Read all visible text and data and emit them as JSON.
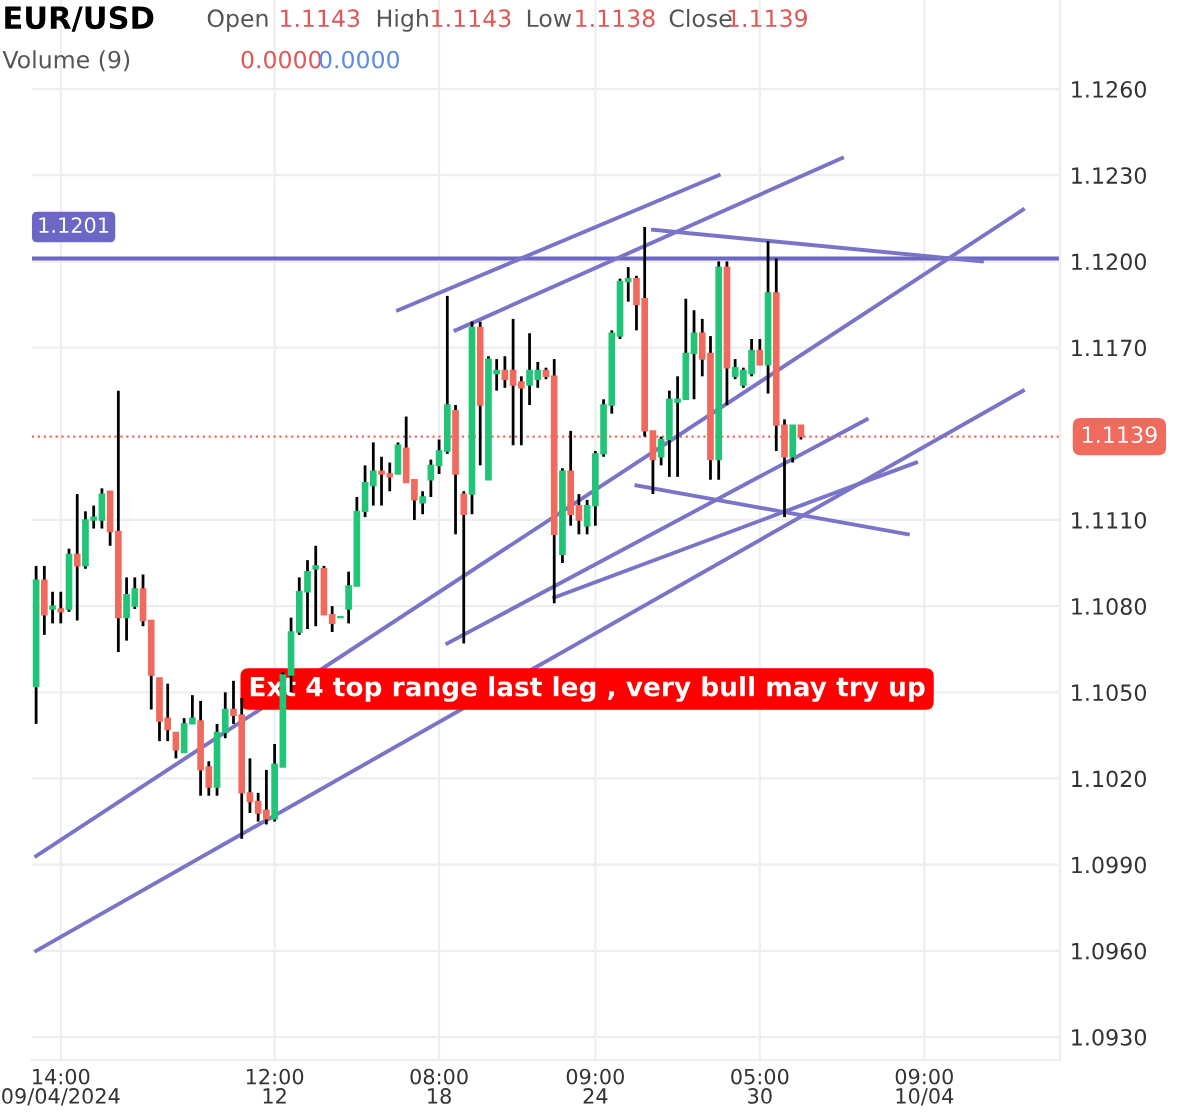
{
  "chart_data": {
    "type": "candlestick",
    "title": "EUR/USD",
    "annotations": [
      "Open",
      "1.1143",
      "High",
      "1.1143",
      "Low",
      "1.1138",
      "Close",
      "1.1139",
      "Volume (9)",
      "0.0000",
      "0.0000",
      "Ext 4 top range last leg , very bull may try up"
    ],
    "categories": [
      null,
      null,
      null,
      "14:00\n09/04/2024",
      null,
      null,
      null,
      null,
      null,
      null,
      null,
      null,
      null,
      null,
      null,
      null,
      null,
      null,
      null,
      null,
      null,
      null,
      null,
      null,
      null,
      null,
      null,
      null,
      null,
      "12:00\n12",
      null,
      null,
      null,
      null,
      null,
      null,
      null,
      null,
      null,
      null,
      null,
      null,
      null,
      null,
      null,
      null,
      null,
      null,
      null,
      "08:00\n18",
      null,
      null,
      null,
      null,
      null,
      null,
      null,
      null,
      null,
      null,
      null,
      null,
      null,
      null,
      null,
      null,
      null,
      null,
      "09:00\n24",
      null,
      null,
      null,
      null,
      null,
      null,
      null,
      null,
      null,
      null,
      null,
      null,
      null,
      null,
      null,
      null,
      null,
      null,
      null,
      "05:00\n30",
      null,
      null,
      null,
      null,
      null,
      null,
      null,
      null,
      null,
      null,
      null,
      null,
      null,
      null,
      null,
      null,
      null,
      null,
      null,
      "09:00\n10/04",
      null,
      null,
      null,
      null,
      null,
      null,
      null,
      null,
      null,
      null,
      null,
      null,
      null,
      null,
      null,
      null
    ],
    "ohlc": [
      [
        1.1052,
        1.1094,
        1.1039,
        1.1089
      ],
      [
        1.1089,
        1.1094,
        1.107,
        1.1077
      ],
      [
        1.1079,
        1.1085,
        1.1074,
        1.108
      ],
      [
        1.1079,
        1.1085,
        1.1074,
        1.1078
      ],
      [
        1.1079,
        1.11,
        1.1078,
        1.1098
      ],
      [
        1.1098,
        1.1119,
        1.1075,
        1.1094
      ],
      [
        1.1094,
        1.1113,
        1.1093,
        1.111
      ],
      [
        1.111,
        1.1115,
        1.1107,
        1.1111
      ],
      [
        1.111,
        1.1121,
        1.1107,
        1.1119
      ],
      [
        1.112,
        1.112,
        1.1101,
        1.1106
      ],
      [
        1.1106,
        1.1155,
        1.1064,
        1.1076
      ],
      [
        1.1076,
        1.109,
        1.1068,
        1.1084
      ],
      [
        1.108,
        1.109,
        1.1079,
        1.1086
      ],
      [
        1.1086,
        1.1091,
        1.1073,
        1.1075
      ],
      [
        1.1075,
        1.1075,
        1.1044,
        1.1056
      ],
      [
        1.1055,
        1.1055,
        1.1033,
        1.104
      ],
      [
        1.1041,
        1.1053,
        1.1033,
        1.1037
      ],
      [
        1.1036,
        1.1036,
        1.1027,
        1.103
      ],
      [
        1.1029,
        1.1041,
        1.1029,
        1.1039
      ],
      [
        1.1039,
        1.1049,
        1.1039,
        1.1041
      ],
      [
        1.104,
        1.1047,
        1.1014,
        1.1023
      ],
      [
        1.1024,
        1.1026,
        1.1014,
        1.1017
      ],
      [
        1.1017,
        1.1039,
        1.1014,
        1.1036
      ],
      [
        1.1036,
        1.105,
        1.1034,
        1.1044
      ],
      [
        1.1044,
        1.1054,
        1.1039,
        1.1042
      ],
      [
        1.1042,
        1.1048,
        1.0999,
        1.1015
      ],
      [
        1.1015,
        1.1027,
        1.1008,
        1.1012
      ],
      [
        1.1012,
        1.1015,
        1.1005,
        1.1008
      ],
      [
        1.1009,
        1.1023,
        1.1004,
        1.1006
      ],
      [
        1.1006,
        1.1032,
        1.1005,
        1.1025
      ],
      [
        1.1024,
        1.1057,
        1.1024,
        1.1056
      ],
      [
        1.1056,
        1.1076,
        1.105,
        1.1071
      ],
      [
        1.1071,
        1.109,
        1.107,
        1.1085
      ],
      [
        1.1085,
        1.1096,
        1.1072,
        1.1092
      ],
      [
        1.1093,
        1.1101,
        1.1073,
        1.1094
      ],
      [
        1.1093,
        1.1094,
        1.1077,
        1.1077
      ],
      [
        1.1077,
        1.108,
        1.1071,
        1.1074
      ],
      [
        1.1076,
        1.1076,
        1.1076,
        1.1076
      ],
      [
        1.1079,
        1.1092,
        1.1074,
        1.1087
      ],
      [
        1.1087,
        1.1118,
        1.1087,
        1.1113
      ],
      [
        1.1113,
        1.1129,
        1.1111,
        1.1123
      ],
      [
        1.1122,
        1.1137,
        1.1115,
        1.1127
      ],
      [
        1.1127,
        1.1132,
        1.1115,
        1.1126
      ],
      [
        1.1126,
        1.113,
        1.112,
        1.1125
      ],
      [
        1.1126,
        1.1137,
        1.1126,
        1.1136
      ],
      [
        1.1135,
        1.1146,
        1.1123,
        1.1123
      ],
      [
        1.1124,
        1.1124,
        1.111,
        1.1117
      ],
      [
        1.1116,
        1.112,
        1.1112,
        1.1118
      ],
      [
        1.1124,
        1.1131,
        1.1118,
        1.1129
      ],
      [
        1.1129,
        1.1138,
        1.1126,
        1.1134
      ],
      [
        1.1134,
        1.1188,
        1.1133,
        1.115
      ],
      [
        1.1148,
        1.115,
        1.1105,
        1.1126
      ],
      [
        1.1119,
        1.112,
        1.1067,
        1.1112
      ],
      [
        1.1119,
        1.1179,
        1.1112,
        1.1177
      ],
      [
        1.1177,
        1.1179,
        1.1129,
        1.115
      ],
      [
        1.1124,
        1.1167,
        1.1124,
        1.1166
      ],
      [
        1.1161,
        1.1166,
        1.1155,
        1.1162
      ],
      [
        1.1162,
        1.1167,
        1.1156,
        1.1159
      ],
      [
        1.1162,
        1.118,
        1.1136,
        1.1157
      ],
      [
        1.1158,
        1.116,
        1.1136,
        1.1156
      ],
      [
        1.1157,
        1.1175,
        1.115,
        1.1162
      ],
      [
        1.1159,
        1.1165,
        1.1156,
        1.1162
      ],
      [
        1.1162,
        1.1163,
        1.1159,
        1.116
      ],
      [
        1.116,
        1.1166,
        1.1081,
        1.1105
      ],
      [
        1.1098,
        1.1128,
        1.1095,
        1.1127
      ],
      [
        1.1127,
        1.1141,
        1.1108,
        1.1112
      ],
      [
        1.1115,
        1.1119,
        1.1105,
        1.111
      ],
      [
        1.1108,
        1.1117,
        1.1105,
        1.1115
      ],
      [
        1.1115,
        1.1134,
        1.1108,
        1.1133
      ],
      [
        1.1133,
        1.1152,
        1.1132,
        1.115
      ],
      [
        1.115,
        1.1176,
        1.1147,
        1.1175
      ],
      [
        1.1174,
        1.1194,
        1.1173,
        1.1193
      ],
      [
        1.1193,
        1.1198,
        1.1186,
        1.1194
      ],
      [
        1.1194,
        1.1195,
        1.1176,
        1.1185
      ],
      [
        1.1187,
        1.1212,
        1.1139,
        1.1141
      ],
      [
        1.1141,
        1.1141,
        1.1119,
        1.1131
      ],
      [
        1.1132,
        1.1139,
        1.1129,
        1.1138
      ],
      [
        1.1138,
        1.1155,
        1.1125,
        1.1152
      ],
      [
        1.1151,
        1.116,
        1.1125,
        1.1152
      ],
      [
        1.1152,
        1.1187,
        1.1152,
        1.1168
      ],
      [
        1.1168,
        1.1183,
        1.1152,
        1.1175
      ],
      [
        1.1175,
        1.118,
        1.116,
        1.1166
      ],
      [
        1.1168,
        1.1174,
        1.1124,
        1.1131
      ],
      [
        1.1131,
        1.12,
        1.1124,
        1.1198
      ],
      [
        1.1198,
        1.12,
        1.115,
        1.1163
      ],
      [
        1.116,
        1.1166,
        1.1159,
        1.1163
      ],
      [
        1.1157,
        1.1163,
        1.1156,
        1.1162
      ],
      [
        1.1161,
        1.1173,
        1.116,
        1.1169
      ],
      [
        1.1169,
        1.1173,
        1.1164,
        1.1164
      ],
      [
        1.1164,
        1.1207,
        1.1154,
        1.1189
      ],
      [
        1.1189,
        1.1201,
        1.1134,
        1.1143
      ],
      [
        1.1143,
        1.1145,
        1.1111,
        1.1132
      ],
      [
        1.1132,
        1.1143,
        1.113,
        1.1143
      ],
      [
        1.1143,
        1.1143,
        1.1138,
        1.1139
      ],
      null,
      null,
      null,
      null,
      null,
      null,
      null,
      null,
      null,
      null,
      null,
      null,
      null,
      null,
      null,
      null,
      null,
      null,
      null,
      null,
      null,
      null,
      null,
      null,
      null,
      null,
      null,
      null,
      null,
      null,
      null
    ],
    "colors": [
      "#22c477",
      "#f06a5e",
      "#22c477",
      "#f06a5e",
      "#22c477",
      "#f06a5e",
      "#22c477",
      "#22c477",
      "#22c477",
      "#f06a5e",
      "#f06a5e",
      "#22c477",
      "#22c477",
      "#f06a5e",
      "#f06a5e",
      "#f06a5e",
      "#f06a5e",
      "#f06a5e",
      "#22c477",
      "#22c477",
      "#f06a5e",
      "#f06a5e",
      "#22c477",
      "#22c477",
      "#f06a5e",
      "#f06a5e",
      "#f06a5e",
      "#f06a5e",
      "#f06a5e",
      "#22c477",
      "#22c477",
      "#22c477",
      "#22c477",
      "#22c477",
      "#22c477",
      "#f06a5e",
      "#f06a5e",
      "#22c477",
      "#22c477",
      "#22c477",
      "#22c477",
      "#22c477",
      "#f06a5e",
      "#f06a5e",
      "#22c477",
      "#f06a5e",
      "#f06a5e",
      "#22c477",
      "#22c477",
      "#22c477",
      "#22c477",
      "#f06a5e",
      "#f06a5e",
      "#22c477",
      "#f06a5e",
      "#22c477",
      "#22c477",
      "#f06a5e",
      "#f06a5e",
      "#f06a5e",
      "#22c477",
      "#22c477",
      "#f06a5e",
      "#f06a5e",
      "#22c477",
      "#f06a5e",
      "#f06a5e",
      "#22c477",
      "#22c477",
      "#22c477",
      "#22c477",
      "#22c477",
      "#22c477",
      "#f06a5e",
      "#f06a5e",
      "#f06a5e",
      "#22c477",
      "#22c477",
      "#22c477",
      "#22c477",
      "#22c477",
      "#f06a5e",
      "#f06a5e",
      "#22c477",
      "#f06a5e",
      "#22c477",
      "#22c477",
      "#22c477",
      "#f06a5e",
      "#22c477",
      "#f06a5e",
      "#f06a5e",
      "#22c477",
      "#f06a5e",
      null,
      null,
      null,
      null,
      null,
      null,
      null,
      null,
      null,
      null,
      null,
      null,
      null,
      null,
      null,
      null,
      null,
      null,
      null,
      null,
      null,
      null,
      null,
      null,
      null,
      null,
      null,
      null,
      null,
      null,
      null
    ],
    "series": [
      {
        "type": "line",
        "color": "#7a74c8",
        "values": [
          1.0993,
          null,
          null,
          null,
          null,
          null,
          null,
          null,
          null,
          null,
          null,
          null,
          null,
          null,
          null,
          null,
          null,
          null,
          null,
          null,
          null,
          null,
          null,
          null,
          null,
          null,
          null,
          null,
          null,
          null,
          null,
          null,
          null,
          null,
          null,
          null,
          null,
          null,
          null,
          null,
          null,
          null,
          null,
          null,
          null,
          null,
          null,
          null,
          null,
          null,
          null,
          null,
          null,
          null,
          null,
          null,
          null,
          null,
          null,
          null,
          null,
          null,
          null,
          null,
          null,
          null,
          null,
          null,
          null,
          null,
          null,
          null,
          null,
          null,
          null,
          null,
          null,
          null,
          null,
          null,
          null,
          null,
          null,
          null,
          null,
          null,
          null,
          null,
          null,
          null,
          null,
          null,
          null,
          null,
          null,
          null,
          null,
          null,
          null,
          null,
          null,
          null,
          null,
          null,
          null,
          null,
          null,
          null,
          null,
          null,
          null,
          null,
          null,
          null,
          null,
          null,
          null,
          null,
          null,
          null,
          1.1218,
          null,
          null,
          null,
          null
        ]
      },
      {
        "type": "line",
        "color": "#7a74c8",
        "values": [
          1.096,
          null,
          null,
          null,
          null,
          null,
          null,
          null,
          null,
          null,
          null,
          null,
          null,
          null,
          null,
          null,
          null,
          null,
          null,
          null,
          null,
          null,
          null,
          null,
          null,
          null,
          null,
          null,
          null,
          null,
          null,
          null,
          null,
          null,
          null,
          null,
          null,
          null,
          null,
          null,
          null,
          null,
          null,
          null,
          null,
          null,
          null,
          null,
          null,
          null,
          null,
          null,
          null,
          null,
          null,
          null,
          null,
          null,
          null,
          null,
          null,
          null,
          null,
          null,
          null,
          null,
          null,
          null,
          null,
          null,
          null,
          null,
          null,
          null,
          null,
          null,
          null,
          null,
          null,
          null,
          null,
          null,
          null,
          null,
          null,
          null,
          null,
          null,
          null,
          null,
          null,
          null,
          null,
          null,
          null,
          null,
          null,
          null,
          null,
          null,
          null,
          null,
          null,
          null,
          null,
          null,
          null,
          null,
          null,
          null,
          null,
          null,
          null,
          null,
          null,
          null,
          null,
          null,
          null,
          null,
          1.1155,
          null,
          null,
          null,
          null
        ]
      },
      {
        "type": "line",
        "color": "#7a74c8",
        "values": [
          null,
          null,
          null,
          null,
          null,
          null,
          null,
          null,
          null,
          null,
          null,
          null,
          null,
          null,
          null,
          null,
          null,
          null,
          null,
          null,
          null,
          null,
          null,
          null,
          null,
          null,
          null,
          null,
          null,
          null,
          null,
          null,
          null,
          null,
          null,
          null,
          null,
          null,
          null,
          null,
          null,
          null,
          null,
          null,
          1.1183,
          null,
          null,
          null,
          null,
          null,
          null,
          null,
          null,
          null,
          null,
          null,
          null,
          null,
          null,
          null,
          null,
          null,
          null,
          null,
          null,
          null,
          null,
          null,
          null,
          null,
          null,
          null,
          null,
          null,
          null,
          null,
          null,
          null,
          null,
          null,
          null,
          null,
          null,
          1.123,
          null,
          null,
          null,
          null,
          null,
          null,
          null,
          null,
          null,
          null,
          null,
          null,
          null,
          null,
          null,
          null,
          null,
          null,
          null,
          null,
          null,
          null,
          null,
          null,
          null,
          null,
          null,
          null,
          null,
          null,
          null,
          null,
          null,
          null,
          null,
          null,
          null,
          null,
          null,
          null,
          null
        ]
      },
      {
        "type": "line",
        "color": "#7a74c8",
        "values": [
          null,
          null,
          null,
          null,
          null,
          null,
          null,
          null,
          null,
          null,
          null,
          null,
          null,
          null,
          null,
          null,
          null,
          null,
          null,
          null,
          null,
          null,
          null,
          null,
          null,
          null,
          null,
          null,
          null,
          null,
          null,
          null,
          null,
          null,
          null,
          null,
          null,
          null,
          null,
          null,
          null,
          null,
          null,
          null,
          null,
          null,
          null,
          null,
          null,
          null,
          null,
          1.1176,
          null,
          null,
          null,
          null,
          null,
          null,
          null,
          null,
          null,
          null,
          null,
          null,
          null,
          null,
          null,
          null,
          null,
          null,
          null,
          null,
          null,
          null,
          null,
          null,
          null,
          null,
          null,
          null,
          null,
          null,
          null,
          null,
          null,
          null,
          null,
          null,
          null,
          null,
          null,
          null,
          null,
          null,
          null,
          null,
          null,
          null,
          1.1236,
          null,
          null,
          null,
          null,
          null,
          null,
          null,
          null,
          null,
          null,
          null,
          null,
          null,
          null,
          null,
          null,
          null,
          null,
          null,
          null,
          null,
          null,
          null,
          null,
          null,
          null
        ]
      },
      {
        "type": "line",
        "color": "#7a74c8",
        "values": [
          null,
          null,
          null,
          null,
          null,
          null,
          null,
          null,
          null,
          null,
          null,
          null,
          null,
          null,
          null,
          null,
          null,
          null,
          null,
          null,
          null,
          null,
          null,
          null,
          null,
          null,
          null,
          null,
          null,
          null,
          null,
          null,
          null,
          null,
          null,
          null,
          null,
          null,
          null,
          null,
          null,
          null,
          null,
          null,
          null,
          null,
          null,
          null,
          null,
          null,
          null,
          null,
          null,
          null,
          null,
          null,
          null,
          null,
          null,
          null,
          null,
          null,
          null,
          null,
          null,
          null,
          null,
          null,
          null,
          null,
          null,
          null,
          null,
          null,
          null,
          1.1211,
          null,
          null,
          null,
          null,
          null,
          null,
          null,
          null,
          null,
          null,
          null,
          null,
          null,
          null,
          null,
          null,
          null,
          null,
          null,
          null,
          null,
          null,
          null,
          null,
          null,
          null,
          null,
          null,
          null,
          null,
          null,
          null,
          null,
          null,
          null,
          null,
          null,
          null,
          null,
          1.12,
          null,
          null,
          null,
          null,
          null,
          null,
          null,
          null,
          null
        ]
      },
      {
        "type": "line",
        "color": "#7a74c8",
        "values": [
          null,
          null,
          null,
          null,
          null,
          null,
          null,
          null,
          null,
          null,
          null,
          null,
          null,
          null,
          null,
          null,
          null,
          null,
          null,
          null,
          null,
          null,
          null,
          null,
          null,
          null,
          null,
          null,
          null,
          null,
          null,
          null,
          null,
          null,
          null,
          null,
          null,
          null,
          null,
          null,
          null,
          null,
          null,
          null,
          null,
          null,
          null,
          null,
          null,
          null,
          1.1067,
          null,
          null,
          null,
          null,
          null,
          null,
          null,
          null,
          null,
          null,
          null,
          null,
          null,
          null,
          null,
          null,
          null,
          null,
          null,
          null,
          null,
          null,
          null,
          null,
          null,
          null,
          null,
          null,
          null,
          null,
          null,
          null,
          null,
          null,
          null,
          null,
          null,
          null,
          null,
          null,
          null,
          null,
          null,
          null,
          null,
          null,
          null,
          null,
          null,
          null,
          1.1145,
          null,
          null,
          null,
          null,
          null,
          null,
          null,
          null,
          null,
          null,
          null,
          null,
          null,
          null,
          null,
          null,
          null,
          null,
          null,
          null,
          null,
          null,
          null
        ]
      },
      {
        "type": "line",
        "color": "#7a74c8",
        "values": [
          null,
          null,
          null,
          null,
          null,
          null,
          null,
          null,
          null,
          null,
          null,
          null,
          null,
          null,
          null,
          null,
          null,
          null,
          null,
          null,
          null,
          null,
          null,
          null,
          null,
          null,
          null,
          null,
          null,
          null,
          null,
          null,
          null,
          null,
          null,
          null,
          null,
          null,
          null,
          null,
          null,
          null,
          null,
          null,
          null,
          null,
          null,
          null,
          null,
          null,
          null,
          null,
          null,
          null,
          null,
          null,
          null,
          null,
          null,
          null,
          null,
          null,
          null,
          1.1083,
          null,
          null,
          null,
          null,
          null,
          null,
          null,
          null,
          null,
          null,
          null,
          null,
          null,
          null,
          null,
          null,
          null,
          null,
          null,
          null,
          null,
          null,
          null,
          null,
          null,
          null,
          null,
          null,
          null,
          null,
          null,
          null,
          null,
          null,
          null,
          null,
          null,
          null,
          null,
          null,
          null,
          null,
          null,
          1.113,
          null,
          null,
          null,
          null,
          null,
          null,
          null,
          null,
          null,
          null,
          null,
          null,
          null,
          null,
          null,
          null,
          null
        ]
      },
      {
        "type": "line",
        "color": "#7a74c8",
        "values": [
          null,
          null,
          null,
          null,
          null,
          null,
          null,
          null,
          null,
          null,
          null,
          null,
          null,
          null,
          null,
          null,
          null,
          null,
          null,
          null,
          null,
          null,
          null,
          null,
          null,
          null,
          null,
          null,
          null,
          null,
          null,
          null,
          null,
          null,
          null,
          null,
          null,
          null,
          null,
          null,
          null,
          null,
          null,
          null,
          null,
          null,
          null,
          null,
          null,
          null,
          null,
          null,
          null,
          null,
          null,
          null,
          null,
          null,
          null,
          null,
          null,
          null,
          null,
          null,
          null,
          null,
          null,
          null,
          null,
          null,
          null,
          null,
          null,
          1.1122,
          null,
          null,
          null,
          null,
          null,
          null,
          null,
          null,
          null,
          null,
          null,
          null,
          null,
          null,
          null,
          null,
          null,
          null,
          null,
          null,
          null,
          null,
          null,
          null,
          null,
          null,
          null,
          null,
          null,
          null,
          null,
          null,
          1.1105,
          null,
          null,
          null,
          null,
          null,
          null,
          null,
          null,
          null,
          null,
          null,
          null,
          null,
          null,
          null,
          null,
          null,
          null
        ]
      }
    ],
    "ref_lines": [
      {
        "axis": "y",
        "value": 1.1201,
        "label": "1.1201",
        "color": "#6c66c4",
        "line_style": "solid"
      },
      {
        "axis": "y",
        "value": 1.1139,
        "label": "1.1139",
        "color": "#f06a5e",
        "line_style": "dotted"
      }
    ],
    "ylim": [
      1.0922,
      1.1291
    ],
    "yticks": [
      {
        "value": 1.093,
        "label": "1.0930"
      },
      {
        "value": 1.096,
        "label": "1.0960"
      },
      {
        "value": 1.099,
        "label": "1.0990"
      },
      {
        "value": 1.102,
        "label": "1.1020"
      },
      {
        "value": 1.105,
        "label": "1.1050"
      },
      {
        "value": 1.108,
        "label": "1.1080"
      },
      {
        "value": 1.111,
        "label": "1.1110"
      },
      {
        "value": 1.117,
        "label": "1.1170"
      },
      {
        "value": 1.12,
        "label": "1.1200"
      },
      {
        "value": 1.123,
        "label": "1.1230"
      },
      {
        "value": 1.126,
        "label": "1.1260"
      }
    ],
    "grid": true
  }
}
